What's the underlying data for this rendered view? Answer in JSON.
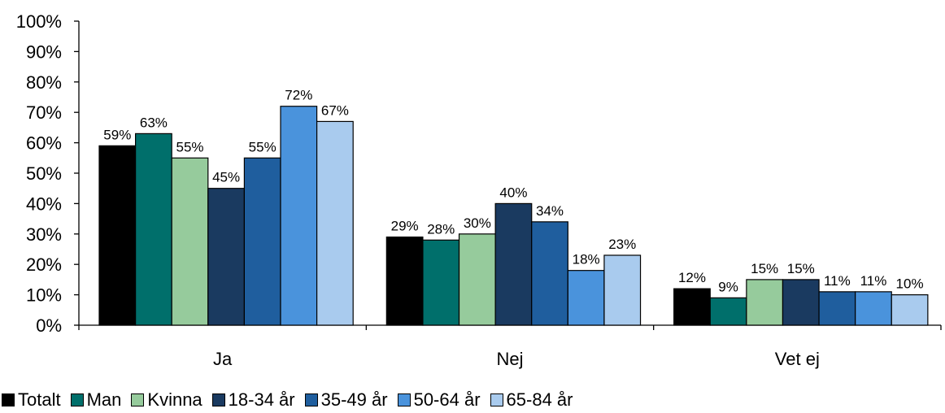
{
  "chart_data": {
    "type": "bar",
    "categories": [
      "Ja",
      "Nej",
      "Vet ej"
    ],
    "series": [
      {
        "name": "Totalt",
        "color": "#000000",
        "values": [
          59,
          29,
          12
        ]
      },
      {
        "name": "Man",
        "color": "#006F6B",
        "values": [
          63,
          28,
          9
        ]
      },
      {
        "name": "Kvinna",
        "color": "#96CB9C",
        "values": [
          55,
          30,
          15
        ]
      },
      {
        "name": "18-34 år",
        "color": "#1A3A60",
        "values": [
          45,
          40,
          15
        ]
      },
      {
        "name": "35-49 år",
        "color": "#1F5E9E",
        "values": [
          55,
          34,
          11
        ]
      },
      {
        "name": "50-64 år",
        "color": "#4A93DC",
        "values": [
          72,
          18,
          11
        ]
      },
      {
        "name": "65-84 år",
        "color": "#A9CBEE",
        "values": [
          67,
          23,
          10
        ]
      }
    ],
    "ylim": [
      0,
      100
    ],
    "yticks": [
      "0%",
      "10%",
      "20%",
      "30%",
      "40%",
      "50%",
      "60%",
      "70%",
      "80%",
      "90%",
      "100%"
    ],
    "value_suffix": "%",
    "grid": false,
    "legend_position": "bottom"
  }
}
